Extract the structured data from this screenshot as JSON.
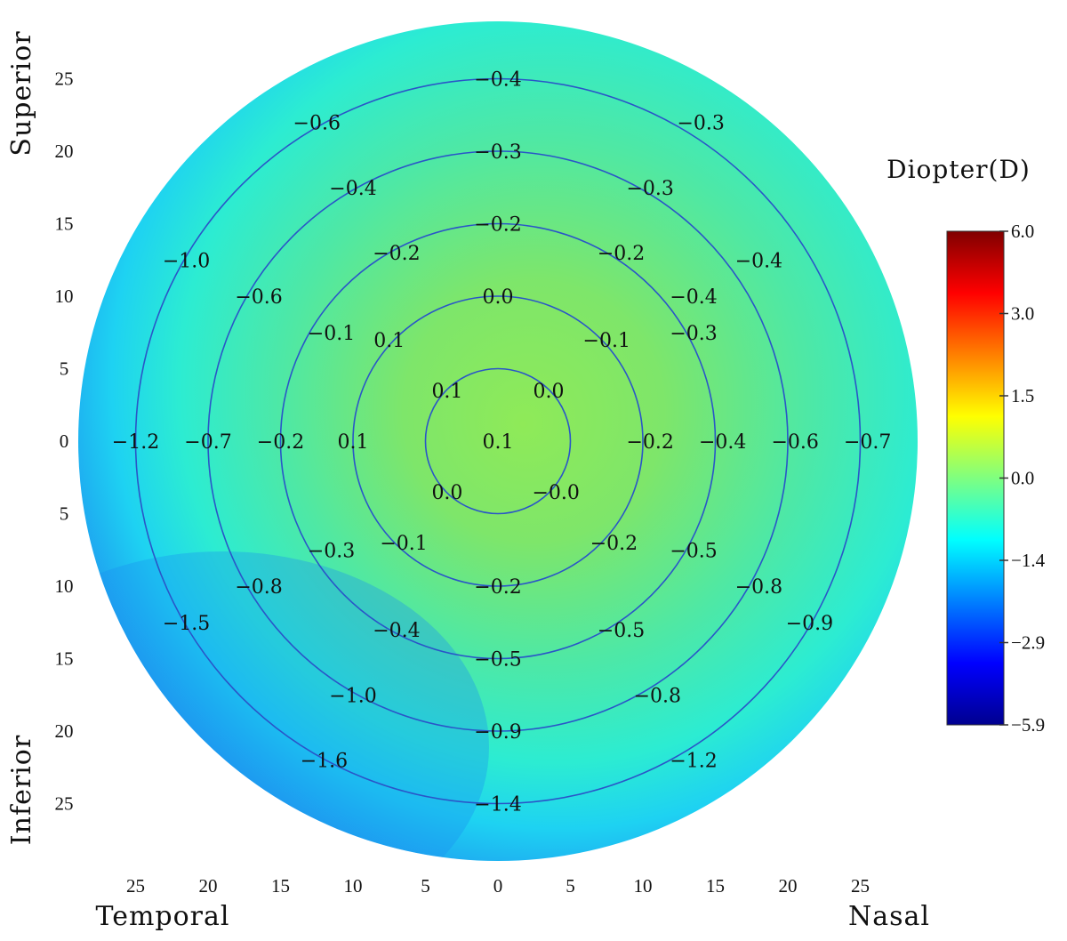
{
  "chart_data": {
    "type": "heatmap",
    "title": "",
    "colorbar": {
      "title": "Diopter(D)",
      "ticks": [
        "6.0",
        "3.0",
        "1.5",
        "0.0",
        "-1.4",
        "-2.9",
        "-5.9"
      ],
      "colormap": "jet",
      "range": [
        -5.9,
        6.0
      ]
    },
    "axis_labels": {
      "superior": "Superior",
      "inferior": "Inferior",
      "temporal": "Temporal",
      "nasal": "Nasal"
    },
    "x_ticks": [
      {
        "value": -25,
        "label": "25"
      },
      {
        "value": -20,
        "label": "20"
      },
      {
        "value": -15,
        "label": "15"
      },
      {
        "value": -10,
        "label": "10"
      },
      {
        "value": -5,
        "label": "5"
      },
      {
        "value": 0,
        "label": "0"
      },
      {
        "value": 5,
        "label": "5"
      },
      {
        "value": 10,
        "label": "10"
      },
      {
        "value": 15,
        "label": "15"
      },
      {
        "value": 20,
        "label": "20"
      },
      {
        "value": 25,
        "label": "25"
      }
    ],
    "y_ticks": [
      {
        "value": 25,
        "label": "25"
      },
      {
        "value": 20,
        "label": "20"
      },
      {
        "value": 15,
        "label": "15"
      },
      {
        "value": 10,
        "label": "10"
      },
      {
        "value": 5,
        "label": "5"
      },
      {
        "value": 0,
        "label": "0"
      },
      {
        "value": -5,
        "label": "5"
      },
      {
        "value": -10,
        "label": "10"
      },
      {
        "value": -15,
        "label": "15"
      },
      {
        "value": -20,
        "label": "20"
      },
      {
        "value": -25,
        "label": "25"
      }
    ],
    "rings_deg": [
      5,
      10,
      15,
      20,
      25
    ],
    "field_extent_deg": 29,
    "points": [
      {
        "x": 0,
        "y": 25,
        "label": "-0.4"
      },
      {
        "x": -12.5,
        "y": 22,
        "label": "-0.6"
      },
      {
        "x": 14,
        "y": 22,
        "label": "-0.3"
      },
      {
        "x": 0,
        "y": 20,
        "label": "-0.3"
      },
      {
        "x": -10,
        "y": 17.5,
        "label": "-0.4"
      },
      {
        "x": 10.5,
        "y": 17.5,
        "label": "-0.3"
      },
      {
        "x": 0,
        "y": 15,
        "label": "-0.2"
      },
      {
        "x": -7,
        "y": 13,
        "label": "-0.2"
      },
      {
        "x": 8.5,
        "y": 13,
        "label": "-0.2"
      },
      {
        "x": -21.5,
        "y": 12.5,
        "label": "-1.0"
      },
      {
        "x": 18,
        "y": 12.5,
        "label": "-0.4"
      },
      {
        "x": -16.5,
        "y": 10,
        "label": "-0.6"
      },
      {
        "x": 0,
        "y": 10,
        "label": "0.0"
      },
      {
        "x": 13.5,
        "y": 10,
        "label": "-0.4"
      },
      {
        "x": -11.5,
        "y": 7.5,
        "label": "-0.1"
      },
      {
        "x": -7.5,
        "y": 7,
        "label": "0.1"
      },
      {
        "x": 7.5,
        "y": 7,
        "label": "-0.1"
      },
      {
        "x": 13.5,
        "y": 7.5,
        "label": "-0.3"
      },
      {
        "x": -3.5,
        "y": 3.5,
        "label": "0.1"
      },
      {
        "x": 3.5,
        "y": 3.5,
        "label": "0.0"
      },
      {
        "x": -25,
        "y": 0,
        "label": "-1.2"
      },
      {
        "x": -20,
        "y": 0,
        "label": "-0.7"
      },
      {
        "x": -15,
        "y": 0,
        "label": "-0.2"
      },
      {
        "x": -10,
        "y": 0,
        "label": "0.1"
      },
      {
        "x": 0,
        "y": 0,
        "label": "0.1"
      },
      {
        "x": 10.5,
        "y": 0,
        "label": "-0.2"
      },
      {
        "x": 15.5,
        "y": 0,
        "label": "-0.4"
      },
      {
        "x": 20.5,
        "y": 0,
        "label": "-0.6"
      },
      {
        "x": 25.5,
        "y": 0,
        "label": "-0.7"
      },
      {
        "x": -3.5,
        "y": -3.5,
        "label": "0.0"
      },
      {
        "x": 4,
        "y": -3.5,
        "label": "-0.0"
      },
      {
        "x": -11.5,
        "y": -7.5,
        "label": "-0.3"
      },
      {
        "x": -6.5,
        "y": -7,
        "label": "-0.1"
      },
      {
        "x": 8,
        "y": -7,
        "label": "-0.2"
      },
      {
        "x": 13.5,
        "y": -7.5,
        "label": "-0.5"
      },
      {
        "x": -16.5,
        "y": -10,
        "label": "-0.8"
      },
      {
        "x": 0,
        "y": -10,
        "label": "-0.2"
      },
      {
        "x": 18,
        "y": -10,
        "label": "-0.8"
      },
      {
        "x": -21.5,
        "y": -12.5,
        "label": "-1.5"
      },
      {
        "x": -7,
        "y": -13,
        "label": "-0.4"
      },
      {
        "x": 8.5,
        "y": -13,
        "label": "-0.5"
      },
      {
        "x": 21.5,
        "y": -12.5,
        "label": "-0.9"
      },
      {
        "x": 0,
        "y": -15,
        "label": "-0.5"
      },
      {
        "x": -10,
        "y": -17.5,
        "label": "-1.0"
      },
      {
        "x": 11,
        "y": -17.5,
        "label": "-0.8"
      },
      {
        "x": 0,
        "y": -20,
        "label": "-0.9"
      },
      {
        "x": -12,
        "y": -22,
        "label": "-1.6"
      },
      {
        "x": 13.5,
        "y": -22,
        "label": "-1.2"
      },
      {
        "x": 0,
        "y": -25,
        "label": "-1.4"
      }
    ]
  }
}
